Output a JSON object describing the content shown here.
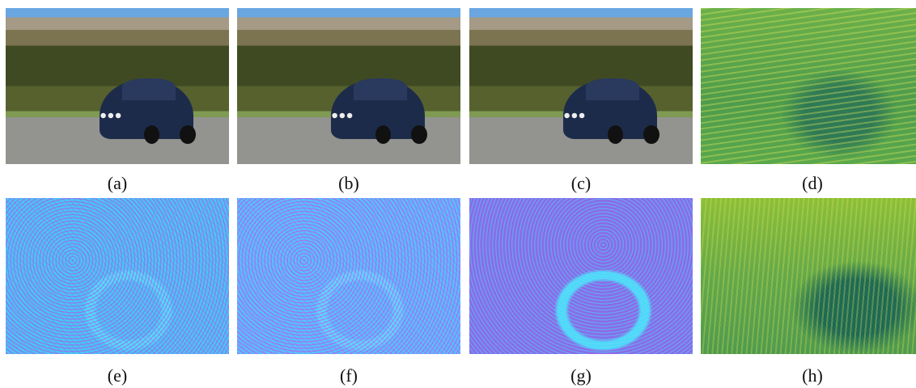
{
  "figure": {
    "captions": [
      "(a)",
      "(b)",
      "(c)",
      "(d)",
      "(e)",
      "(f)",
      "(g)",
      "(h)"
    ]
  }
}
